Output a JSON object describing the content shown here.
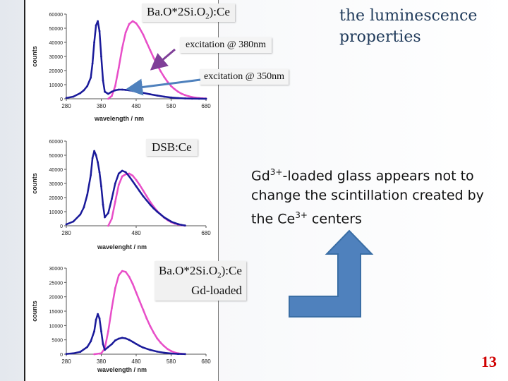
{
  "title": "the luminescence properties",
  "labels": {
    "baosio": "Ba.O*2Si.O",
    "baosio_sub": "2",
    "baosio_suffix": "):Ce",
    "excitation380": "excitation @ 380nm",
    "excitation350": "excitation @ 350nm",
    "dsb": "DSB:Ce",
    "gd_line1": "Ba.O*2Si.O",
    "gd_line1_sub": "2",
    "gd_line1_suffix": "):Ce",
    "gd_line2": "Gd-loaded"
  },
  "gd_text": {
    "p1": "Gd",
    "p1_sup": "3+",
    "p2": "-loaded glass appears not to change the scintillation created by the Ce",
    "p2_sup": "3+",
    "p3": " centers"
  },
  "slide_number": "13",
  "colors": {
    "pink": "#e84ec8",
    "blue": "#1a1a9a",
    "arrow_blue": "#4f81bd",
    "arrow_purple": "#7f3f98"
  },
  "chart_data": [
    {
      "type": "line",
      "ylabel": "counts",
      "xlabel": "wavelength / nm",
      "xticks": [
        "280",
        "380",
        "480",
        "580",
        "680"
      ],
      "yticks": [
        "0",
        "10000",
        "20000",
        "30000",
        "40000",
        "50000",
        "60000"
      ],
      "xlim": [
        280,
        680
      ],
      "ylim": [
        0,
        60000
      ],
      "series": [
        {
          "color": "pink",
          "x": [
            400,
            410,
            420,
            430,
            440,
            450,
            460,
            470,
            480,
            490,
            500,
            510,
            520,
            530,
            540,
            550,
            560,
            570,
            580,
            590,
            600,
            610,
            620,
            630,
            640,
            650,
            660,
            670,
            680
          ],
          "y": [
            0,
            2000,
            9000,
            22000,
            36000,
            47000,
            53000,
            55000,
            53500,
            50000,
            45500,
            40000,
            34500,
            29000,
            24000,
            19500,
            15500,
            12000,
            9000,
            6800,
            5000,
            3600,
            2600,
            1800,
            1200,
            800,
            500,
            300,
            200
          ]
        },
        {
          "color": "blue",
          "x": [
            280,
            300,
            320,
            330,
            340,
            350,
            355,
            360,
            365,
            370,
            375,
            380,
            385,
            390,
            400,
            410,
            420,
            430,
            440,
            450,
            460,
            470,
            480,
            490,
            500,
            520,
            540,
            560,
            580,
            600,
            620,
            640,
            660,
            680
          ],
          "y": [
            600,
            1500,
            4000,
            6000,
            9000,
            15000,
            25000,
            40000,
            52000,
            55000,
            48000,
            30000,
            13000,
            5000,
            3500,
            5000,
            6000,
            6500,
            6500,
            6300,
            6000,
            5600,
            5200,
            4800,
            4200,
            3200,
            2300,
            1500,
            900,
            500,
            250,
            100,
            50,
            20
          ]
        }
      ]
    },
    {
      "type": "line",
      "ylabel": "counts",
      "xlabel": "wavelenght / nm",
      "xticks": [
        "280",
        "480",
        "680"
      ],
      "yticks": [
        "0",
        "10000",
        "20000",
        "30000",
        "40000",
        "50000",
        "60000"
      ],
      "xlim": [
        280,
        680
      ],
      "ylim": [
        0,
        60000
      ],
      "series": [
        {
          "color": "pink",
          "x": [
            400,
            410,
            420,
            430,
            440,
            450,
            460,
            470,
            480,
            490,
            500,
            510,
            520,
            530,
            540,
            550,
            560,
            570,
            580,
            590,
            600,
            610,
            620
          ],
          "y": [
            0,
            5000,
            17000,
            29000,
            35000,
            36500,
            37000,
            35500,
            32500,
            29000,
            25000,
            21000,
            17000,
            13500,
            10500,
            8000,
            5800,
            4000,
            2600,
            1600,
            900,
            400,
            150
          ]
        },
        {
          "color": "blue",
          "x": [
            280,
            300,
            320,
            330,
            340,
            350,
            355,
            360,
            365,
            370,
            375,
            380,
            385,
            390,
            400,
            410,
            420,
            430,
            440,
            450,
            460,
            470,
            480,
            490,
            500,
            510,
            520,
            530,
            540,
            550,
            560,
            570,
            580,
            590,
            600,
            610,
            620
          ],
          "y": [
            1000,
            3000,
            8000,
            13000,
            22000,
            36000,
            48000,
            53000,
            50000,
            45000,
            38000,
            28000,
            15000,
            6000,
            9000,
            19000,
            30000,
            37000,
            39000,
            38000,
            35000,
            31500,
            28000,
            24500,
            21000,
            18000,
            15000,
            12300,
            10000,
            8000,
            6000,
            4500,
            3000,
            2000,
            1200,
            600,
            200
          ]
        }
      ]
    },
    {
      "type": "line",
      "ylabel": "counts",
      "xlabel": "wavelength / nm",
      "xticks": [
        "280",
        "380",
        "480",
        "580",
        "680"
      ],
      "yticks": [
        "0",
        "5000",
        "10000",
        "15000",
        "20000",
        "25000",
        "30000"
      ],
      "xlim": [
        280,
        680
      ],
      "ylim": [
        0,
        30000
      ],
      "series": [
        {
          "color": "pink",
          "x": [
            360,
            380,
            390,
            400,
            410,
            420,
            430,
            440,
            450,
            460,
            470,
            480,
            490,
            500,
            510,
            520,
            530,
            540,
            550,
            560,
            570,
            580,
            590,
            600,
            610,
            620
          ],
          "y": [
            0,
            300,
            2000,
            8000,
            16000,
            23000,
            27500,
            29000,
            28700,
            27000,
            24500,
            21500,
            18500,
            15500,
            12500,
            9800,
            7500,
            5500,
            4000,
            2800,
            1800,
            1100,
            600,
            300,
            150,
            50
          ]
        },
        {
          "color": "blue",
          "x": [
            280,
            300,
            320,
            340,
            350,
            360,
            365,
            370,
            375,
            380,
            385,
            390,
            400,
            410,
            420,
            430,
            440,
            450,
            460,
            470,
            480,
            490,
            500,
            520,
            540,
            560,
            580,
            600,
            620
          ],
          "y": [
            100,
            300,
            800,
            2500,
            4500,
            8000,
            12000,
            14000,
            12500,
            8000,
            3500,
            1500,
            2500,
            3500,
            4800,
            5400,
            5700,
            5500,
            5000,
            4300,
            3600,
            2900,
            2300,
            1500,
            900,
            500,
            250,
            100,
            50
          ]
        }
      ]
    }
  ]
}
